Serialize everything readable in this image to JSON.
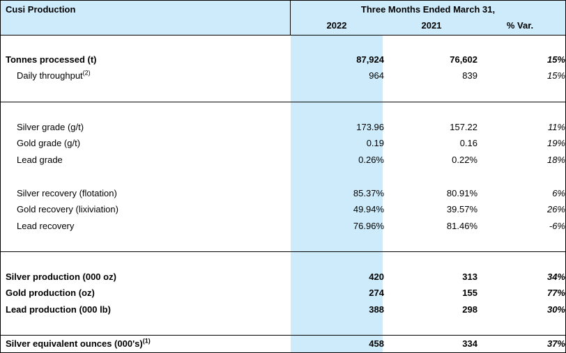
{
  "table": {
    "title": "Cusi Production",
    "period_header": "Three Months Ended March 31,",
    "columns": [
      "2022",
      "2021",
      "% Var."
    ],
    "rows": [
      {
        "label": "Tonnes processed (t)",
        "sup": "",
        "v2022": "87,924",
        "v2021": "76,602",
        "var": "15%",
        "bold": true,
        "indent": false
      },
      {
        "label": "Daily throughput",
        "sup": "(2)",
        "v2022": "964",
        "v2021": "839",
        "var": "15%",
        "bold": false,
        "indent": true
      },
      {
        "label": "Silver grade (g/t)",
        "sup": "",
        "v2022": "173.96",
        "v2021": "157.22",
        "var": "11%",
        "bold": false,
        "indent": true
      },
      {
        "label": "Gold grade (g/t)",
        "sup": "",
        "v2022": "0.19",
        "v2021": "0.16",
        "var": "19%",
        "bold": false,
        "indent": true
      },
      {
        "label": "Lead grade",
        "sup": "",
        "v2022": "0.26%",
        "v2021": "0.22%",
        "var": "18%",
        "bold": false,
        "indent": true
      },
      {
        "label": "Silver recovery (flotation)",
        "sup": "",
        "v2022": "85.37%",
        "v2021": "80.91%",
        "var": "6%",
        "bold": false,
        "indent": true
      },
      {
        "label": "Gold recovery (lixiviation)",
        "sup": "",
        "v2022": "49.94%",
        "v2021": "39.57%",
        "var": "26%",
        "bold": false,
        "indent": true
      },
      {
        "label": "Lead recovery",
        "sup": "",
        "v2022": "76.96%",
        "v2021": "81.46%",
        "var": "-6%",
        "bold": false,
        "indent": true
      },
      {
        "label": "Silver production (000 oz)",
        "sup": "",
        "v2022": "420",
        "v2021": "313",
        "var": "34%",
        "bold": true,
        "indent": false
      },
      {
        "label": "Gold production (oz)",
        "sup": "",
        "v2022": "274",
        "v2021": "155",
        "var": "77%",
        "bold": true,
        "indent": false
      },
      {
        "label": "Lead production (000 lb)",
        "sup": "",
        "v2022": "388",
        "v2021": "298",
        "var": "30%",
        "bold": true,
        "indent": false
      },
      {
        "label": "Silver equivalent ounces (000's)",
        "sup": "(1)",
        "v2022": "458",
        "v2021": "334",
        "var": "37%",
        "bold": true,
        "indent": false
      }
    ]
  },
  "colors": {
    "highlight": "#cdebfa",
    "rule": "#000000"
  }
}
